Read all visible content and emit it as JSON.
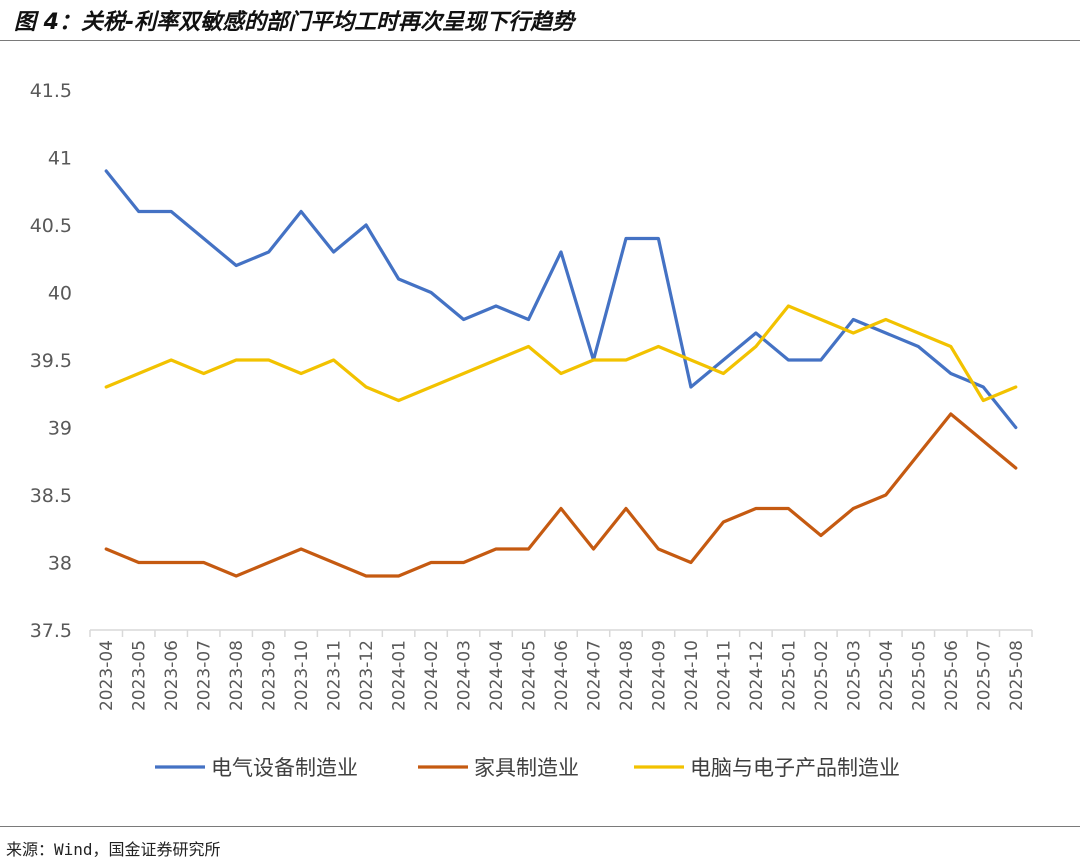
{
  "title": "图 4：关税-利率双敏感的部门平均工时再次呈现下行趋势",
  "source": "来源：Wind，国金证券研究所",
  "chart_data": {
    "type": "line",
    "title": "图 4：关税-利率双敏感的部门平均工时再次呈现下行趋势",
    "xlabel": "",
    "ylabel": "",
    "ylim": [
      37.5,
      41.5
    ],
    "yticks": [
      37.5,
      38,
      38.5,
      39,
      39.5,
      40,
      40.5,
      41,
      41.5
    ],
    "grid": false,
    "legend_position": "bottom",
    "categories": [
      "2023-04",
      "2023-05",
      "2023-06",
      "2023-07",
      "2023-08",
      "2023-09",
      "2023-10",
      "2023-11",
      "2023-12",
      "2024-01",
      "2024-02",
      "2024-03",
      "2024-04",
      "2024-05",
      "2024-06",
      "2024-07",
      "2024-08",
      "2024-09",
      "2024-10",
      "2024-11",
      "2024-12",
      "2025-01",
      "2025-02",
      "2025-03",
      "2025-04",
      "2025-05",
      "2025-06",
      "2025-07",
      "2025-08"
    ],
    "series": [
      {
        "name": "电气设备制造业",
        "color": "#4472C4",
        "values": [
          40.9,
          40.6,
          40.6,
          40.4,
          40.2,
          40.3,
          40.6,
          40.3,
          40.5,
          40.1,
          40.0,
          39.8,
          39.9,
          39.8,
          40.3,
          39.5,
          40.4,
          40.4,
          39.3,
          39.5,
          39.7,
          39.5,
          39.5,
          39.8,
          39.7,
          39.6,
          39.4,
          39.3,
          39.0
        ]
      },
      {
        "name": "家具制造业",
        "color": "#C55A11",
        "values": [
          38.1,
          38.0,
          38.0,
          38.0,
          37.9,
          38.0,
          38.1,
          38.0,
          37.9,
          37.9,
          38.0,
          38.0,
          38.1,
          38.1,
          38.4,
          38.1,
          38.4,
          38.1,
          38.0,
          38.3,
          38.4,
          38.4,
          38.2,
          38.4,
          38.5,
          38.8,
          39.1,
          38.9,
          38.7
        ]
      },
      {
        "name": "电脑与电子产品制造业",
        "color": "#F2C200",
        "values": [
          39.3,
          39.4,
          39.5,
          39.4,
          39.5,
          39.5,
          39.4,
          39.5,
          39.3,
          39.2,
          39.3,
          39.4,
          39.5,
          39.6,
          39.4,
          39.5,
          39.5,
          39.6,
          39.5,
          39.4,
          39.6,
          39.9,
          39.8,
          39.7,
          39.8,
          39.7,
          39.6,
          39.2,
          39.3
        ]
      }
    ]
  }
}
